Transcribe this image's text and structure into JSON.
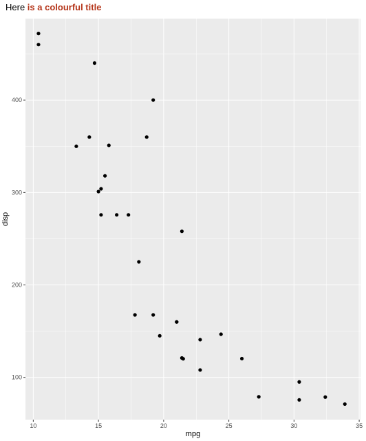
{
  "chart_data": {
    "type": "scatter",
    "title": {
      "plain": "Here ",
      "accent": "is a colourful title",
      "accent_color": "#b5361b"
    },
    "xlabel": "mpg",
    "ylabel": "disp",
    "xlim": [
      9.4,
      35.1
    ],
    "ylim": [
      54.3,
      488.1
    ],
    "x_ticks": [
      10,
      15,
      20,
      25,
      30,
      35
    ],
    "y_ticks": [
      100,
      200,
      300,
      400
    ],
    "grid": true,
    "legend": "none",
    "panel_background": "#ebebeb",
    "grid_color": "#ffffff",
    "point_color": "#000000",
    "points": [
      {
        "x": 21.0,
        "y": 160
      },
      {
        "x": 21.0,
        "y": 160
      },
      {
        "x": 22.8,
        "y": 108
      },
      {
        "x": 21.4,
        "y": 258
      },
      {
        "x": 18.7,
        "y": 360
      },
      {
        "x": 18.1,
        "y": 225
      },
      {
        "x": 14.3,
        "y": 360
      },
      {
        "x": 24.4,
        "y": 146.7
      },
      {
        "x": 22.8,
        "y": 140.8
      },
      {
        "x": 19.2,
        "y": 167.6
      },
      {
        "x": 17.8,
        "y": 167.6
      },
      {
        "x": 16.4,
        "y": 275.8
      },
      {
        "x": 17.3,
        "y": 275.8
      },
      {
        "x": 15.2,
        "y": 275.8
      },
      {
        "x": 10.4,
        "y": 472
      },
      {
        "x": 10.4,
        "y": 460
      },
      {
        "x": 14.7,
        "y": 440
      },
      {
        "x": 32.4,
        "y": 78.7
      },
      {
        "x": 30.4,
        "y": 75.7
      },
      {
        "x": 33.9,
        "y": 71.1
      },
      {
        "x": 21.5,
        "y": 120.1
      },
      {
        "x": 15.5,
        "y": 318
      },
      {
        "x": 15.2,
        "y": 304
      },
      {
        "x": 13.3,
        "y": 350
      },
      {
        "x": 19.2,
        "y": 400
      },
      {
        "x": 27.3,
        "y": 79
      },
      {
        "x": 26.0,
        "y": 120.3
      },
      {
        "x": 30.4,
        "y": 95.1
      },
      {
        "x": 15.8,
        "y": 351
      },
      {
        "x": 19.7,
        "y": 145
      },
      {
        "x": 15.0,
        "y": 301
      },
      {
        "x": 21.4,
        "y": 121
      }
    ]
  }
}
